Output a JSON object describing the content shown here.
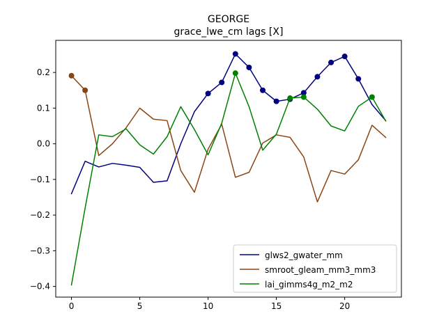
{
  "chart_data": {
    "type": "line",
    "title": "GEORGE",
    "subtitle": "grace_lwe_cm lags [X]",
    "xlabel": "",
    "ylabel": "",
    "xlim": [
      -1.15,
      24.15
    ],
    "ylim": [
      -0.43,
      0.29
    ],
    "xticks": [
      0,
      5,
      10,
      15,
      20
    ],
    "yticks": [
      -0.4,
      -0.3,
      -0.2,
      -0.1,
      0.0,
      0.1,
      0.2
    ],
    "ytick_labels": [
      "−0.4",
      "−0.3",
      "−0.2",
      "−0.1",
      "0.0",
      "0.1",
      "0.2"
    ],
    "grid": false,
    "legend_position": "lower-right",
    "x": [
      0,
      1,
      2,
      3,
      4,
      5,
      6,
      7,
      8,
      9,
      10,
      11,
      12,
      13,
      14,
      15,
      16,
      17,
      18,
      19,
      20,
      21,
      22,
      23
    ],
    "series": [
      {
        "name": "glws2_gwater_mm",
        "color": "#000080",
        "values": [
          -0.14,
          -0.049,
          -0.065,
          -0.055,
          -0.06,
          -0.066,
          -0.108,
          -0.104,
          0.0,
          0.09,
          0.141,
          0.172,
          0.252,
          0.214,
          0.15,
          0.119,
          0.125,
          0.143,
          0.188,
          0.228,
          0.245,
          0.182,
          0.11,
          0.065
        ],
        "markers": [
          10,
          11,
          12,
          13,
          14,
          15,
          16,
          17,
          18,
          19,
          20,
          21
        ]
      },
      {
        "name": "smroot_gleam_mm3_mm3",
        "color": "#8b4513",
        "values": [
          0.191,
          0.15,
          -0.033,
          0.0,
          0.045,
          0.1,
          0.069,
          0.065,
          -0.075,
          -0.136,
          -0.015,
          0.055,
          -0.094,
          -0.08,
          0.002,
          0.025,
          0.018,
          -0.037,
          -0.163,
          -0.075,
          -0.085,
          -0.045,
          0.052,
          0.018
        ],
        "markers": [
          0,
          1
        ]
      },
      {
        "name": "lai_gimms4g_m2_m2",
        "color": "#008000",
        "values": [
          -0.396,
          -0.18,
          0.025,
          0.02,
          0.042,
          -0.003,
          -0.029,
          0.02,
          0.104,
          0.04,
          -0.031,
          0.058,
          0.198,
          0.104,
          -0.018,
          0.027,
          0.128,
          0.131,
          0.097,
          0.05,
          0.036,
          0.105,
          0.131,
          0.064
        ],
        "markers": [
          12,
          16,
          17,
          22
        ]
      }
    ]
  }
}
